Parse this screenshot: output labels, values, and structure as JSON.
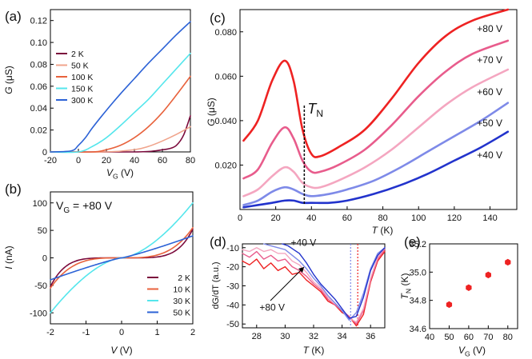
{
  "chart_data": [
    {
      "id": "a",
      "panel_label": "(a)",
      "type": "line",
      "xlabel": "V",
      "xlabel_sub": "G",
      "xlabel_unit": "(V)",
      "ylabel": "G",
      "ylabel_unit": "(μS)",
      "xlim": [
        -20,
        80
      ],
      "ylim": [
        0,
        0.13
      ],
      "xticks": [
        -20,
        0,
        20,
        40,
        60,
        80
      ],
      "xticklabels": [
        "-20",
        "0",
        "20",
        "40",
        "60",
        "80"
      ],
      "yticks": [
        0,
        0.02,
        0.04,
        0.06,
        0.08,
        0.1,
        0.12
      ],
      "yticklabels": [
        "0",
        "0.02",
        "0.04",
        "0.06",
        "0.08",
        "0.10",
        "0.12"
      ],
      "legend_position": "left",
      "series": [
        {
          "name": "2 K",
          "color": "#7b0a3c",
          "x": [
            -20,
            40,
            55,
            60,
            65,
            70,
            75,
            80
          ],
          "y": [
            0,
            0,
            0.001,
            0.002,
            0.003,
            0.006,
            0.015,
            0.033
          ]
        },
        {
          "name": "50 K",
          "color": "#f0a48c",
          "x": [
            -20,
            20,
            40,
            50,
            60,
            70,
            80
          ],
          "y": [
            0,
            0,
            0.002,
            0.005,
            0.01,
            0.016,
            0.023
          ]
        },
        {
          "name": "100 K",
          "color": "#e8623c",
          "x": [
            -20,
            10,
            20,
            30,
            40,
            50,
            60,
            70,
            80
          ],
          "y": [
            0,
            0,
            0.002,
            0.006,
            0.013,
            0.023,
            0.036,
            0.052,
            0.069
          ]
        },
        {
          "name": "150 K",
          "color": "#55e6ec",
          "x": [
            -20,
            0,
            10,
            20,
            30,
            40,
            50,
            60,
            70,
            80
          ],
          "y": [
            0,
            0,
            0.005,
            0.013,
            0.024,
            0.036,
            0.048,
            0.062,
            0.076,
            0.09
          ]
        },
        {
          "name": "300 K",
          "color": "#2c62d6",
          "x": [
            -20,
            -5,
            0,
            5,
            10,
            20,
            30,
            40,
            50,
            60,
            70,
            80
          ],
          "y": [
            0,
            0.001,
            0.006,
            0.013,
            0.022,
            0.038,
            0.053,
            0.067,
            0.081,
            0.094,
            0.107,
            0.119
          ]
        }
      ]
    },
    {
      "id": "b",
      "panel_label": "(b)",
      "type": "line",
      "annotation": "V",
      "annotation_sub": "G",
      "annotation_value": " = +80 V",
      "xlabel": "V",
      "xlabel_unit": "(V)",
      "ylabel": "I",
      "ylabel_unit": "(nA)",
      "xlim": [
        -2,
        2
      ],
      "ylim": [
        -120,
        120
      ],
      "xticks": [
        -2,
        -1,
        0,
        1,
        2
      ],
      "xticklabels": [
        "-2",
        "-1",
        "0",
        "1",
        "2"
      ],
      "yticks": [
        -100,
        -50,
        0,
        50,
        100
      ],
      "yticklabels": [
        "-100",
        "-50",
        "0",
        "50",
        "100"
      ],
      "legend_position": "bottom-right",
      "series": [
        {
          "name": "2 K",
          "color": "#7b0a3c",
          "model": "cubic",
          "scale": 50
        },
        {
          "name": "10 K",
          "color": "#e8623c",
          "model": "cubic",
          "scale": 55
        },
        {
          "name": "30 K",
          "color": "#55e6ec",
          "model": "cubic",
          "scale": 100
        },
        {
          "name": "50 K",
          "color": "#2c62d6",
          "model": "linear",
          "scale": 40
        }
      ]
    },
    {
      "id": "c",
      "panel_label": "(c)",
      "type": "line",
      "xlabel": "T",
      "xlabel_unit": "(K)",
      "ylabel": "G",
      "ylabel_unit": "(μS)",
      "xlim": [
        0,
        155
      ],
      "ylim": [
        0,
        0.09
      ],
      "xticks": [
        0,
        20,
        40,
        60,
        80,
        100,
        120,
        140
      ],
      "xticklabels": [
        "0",
        "20",
        "40",
        "60",
        "80",
        "100",
        "120",
        "140"
      ],
      "yticks": [
        0.02,
        0.04,
        0.06,
        0.08
      ],
      "yticklabels": [
        "0.020",
        "0.040",
        "0.060",
        "0.080"
      ],
      "annotation": "T",
      "annotation_sub": "N",
      "transition_T": 36,
      "series": [
        {
          "name": "+80 V",
          "color": "#ee2222",
          "x": [
            2,
            10,
            18,
            25,
            30,
            35,
            40,
            45,
            55,
            70,
            85,
            100,
            115,
            130,
            150
          ],
          "y": [
            0.031,
            0.04,
            0.058,
            0.067,
            0.058,
            0.036,
            0.025,
            0.024,
            0.028,
            0.036,
            0.05,
            0.066,
            0.078,
            0.085,
            0.09
          ]
        },
        {
          "name": "+70 V",
          "color": "#e85c8c",
          "x": [
            2,
            10,
            18,
            25,
            30,
            35,
            40,
            45,
            55,
            70,
            85,
            100,
            115,
            130,
            150
          ],
          "y": [
            0.014,
            0.018,
            0.03,
            0.037,
            0.032,
            0.022,
            0.017,
            0.017,
            0.02,
            0.027,
            0.038,
            0.051,
            0.062,
            0.07,
            0.076
          ]
        },
        {
          "name": "+60 V",
          "color": "#f4a6c0",
          "x": [
            2,
            10,
            18,
            25,
            30,
            35,
            40,
            45,
            55,
            70,
            85,
            100,
            115,
            130,
            150
          ],
          "y": [
            0.006,
            0.009,
            0.015,
            0.019,
            0.017,
            0.012,
            0.01,
            0.01,
            0.013,
            0.019,
            0.027,
            0.037,
            0.047,
            0.055,
            0.063
          ]
        },
        {
          "name": "+50 V",
          "color": "#7e8ae8",
          "x": [
            2,
            10,
            18,
            25,
            30,
            35,
            40,
            50,
            60,
            75,
            90,
            105,
            120,
            135,
            150
          ],
          "y": [
            0.002,
            0.004,
            0.008,
            0.01,
            0.009,
            0.007,
            0.006,
            0.007,
            0.009,
            0.013,
            0.019,
            0.026,
            0.033,
            0.04,
            0.048
          ]
        },
        {
          "name": "+40 V",
          "color": "#2233cc",
          "x": [
            2,
            10,
            18,
            25,
            30,
            35,
            40,
            50,
            60,
            75,
            90,
            105,
            120,
            135,
            150
          ],
          "y": [
            0.001,
            0.002,
            0.003,
            0.004,
            0.004,
            0.003,
            0.003,
            0.003,
            0.004,
            0.007,
            0.011,
            0.016,
            0.022,
            0.028,
            0.035
          ]
        }
      ]
    },
    {
      "id": "d",
      "panel_label": "(d)",
      "type": "line",
      "xlabel": "T",
      "xlabel_unit": "(K)",
      "ylabel": "dG/dT",
      "ylabel_unit": "(a.u.)",
      "xlim": [
        27,
        37
      ],
      "ylim": [
        -52,
        -8
      ],
      "xticks": [
        28,
        30,
        32,
        34,
        36
      ],
      "xticklabels": [
        "28",
        "30",
        "32",
        "34",
        "36"
      ],
      "yticks": [
        -10,
        -20,
        -30,
        -40,
        -50
      ],
      "yticklabels": [
        "-10",
        "-20",
        "-30",
        "-40",
        "-50"
      ],
      "annotations": [
        {
          "text": "+40 V",
          "color": "#2233cc",
          "x": 30.4,
          "y": -9
        },
        {
          "text": "+80 V",
          "color": "#ee2222",
          "x": 28.2,
          "y": -43
        }
      ],
      "dotted_lines": [
        {
          "T": 34.6,
          "color": "#7e8ae8"
        },
        {
          "T": 35.1,
          "color": "#ee2222"
        }
      ],
      "series": [
        {
          "name": "+80 V",
          "color": "#ee2222",
          "x": [
            27,
            27.5,
            28,
            28.5,
            29,
            29.5,
            30,
            30.5,
            31,
            31.5,
            32,
            32.5,
            33,
            33.5,
            34,
            34.5,
            35,
            35.5,
            36,
            36.5,
            37
          ],
          "y": [
            -17,
            -19,
            -16,
            -21,
            -18,
            -22,
            -20,
            -24,
            -23,
            -27,
            -30,
            -33,
            -38,
            -40,
            -44,
            -46,
            -51,
            -45,
            -28,
            -17,
            -12
          ]
        },
        {
          "name": "+70 V",
          "color": "#e85c8c",
          "x": [
            27,
            27.5,
            28,
            28.5,
            29,
            29.5,
            30,
            30.5,
            31,
            31.5,
            32,
            32.5,
            33,
            33.5,
            34,
            34.5,
            35,
            35.5,
            36,
            36.5,
            37
          ],
          "y": [
            -13,
            -15,
            -12,
            -16,
            -14,
            -17,
            -16,
            -20,
            -22,
            -25,
            -29,
            -32,
            -37,
            -40,
            -43,
            -46,
            -50,
            -43,
            -27,
            -16,
            -11
          ]
        },
        {
          "name": "+60 V",
          "color": "#f4a6c0",
          "x": [
            27,
            27.5,
            28,
            28.5,
            29,
            29.5,
            30,
            30.5,
            31,
            31.5,
            32,
            32.5,
            33,
            33.5,
            34,
            34.5,
            35,
            35.5,
            36,
            36.5,
            37
          ],
          "y": [
            -11,
            -12,
            -10,
            -12,
            -11,
            -13,
            -13,
            -17,
            -19,
            -23,
            -28,
            -31,
            -36,
            -39,
            -43,
            -47,
            -49,
            -42,
            -26,
            -15,
            -10
          ]
        },
        {
          "name": "+50 V",
          "color": "#7e8ae8",
          "x": [
            28.5,
            29,
            29.5,
            30,
            30.5,
            31,
            31.5,
            32,
            32.5,
            33,
            33.5,
            34,
            34.5,
            35,
            35.5,
            36,
            36.5,
            37
          ],
          "y": [
            -8,
            -9,
            -10,
            -11,
            -14,
            -17,
            -21,
            -26,
            -30,
            -35,
            -39,
            -43,
            -48,
            -44,
            -34,
            -21,
            -13,
            -10
          ]
        },
        {
          "name": "+40 V",
          "color": "#2233cc",
          "x": [
            29.8,
            30.2,
            30.6,
            31,
            31.5,
            32,
            32.5,
            33,
            33.5,
            34,
            34.5,
            35,
            35.5,
            36,
            36.5,
            37
          ],
          "y": [
            -8,
            -9,
            -11,
            -13,
            -18,
            -24,
            -29,
            -33,
            -37,
            -42,
            -47,
            -46,
            -36,
            -22,
            -14,
            -10
          ]
        }
      ]
    },
    {
      "id": "e",
      "panel_label": "(e)",
      "type": "scatter",
      "xlabel": "V",
      "xlabel_sub": "G",
      "xlabel_unit": "(V)",
      "ylabel": "T",
      "ylabel_sub": "N",
      "ylabel_unit": "(K)",
      "xlim": [
        40,
        85
      ],
      "ylim": [
        34.6,
        35.2
      ],
      "xticks": [
        40,
        50,
        60,
        70,
        80
      ],
      "xticklabels": [
        "40",
        "50",
        "60",
        "70",
        "80"
      ],
      "yticks": [
        34.6,
        34.8,
        35.0,
        35.2
      ],
      "yticklabels": [
        "34.6",
        "34.8",
        "35.0",
        "35.2"
      ],
      "color": "#ee2222",
      "points": [
        {
          "x": 50,
          "y": 34.77
        },
        {
          "x": 60,
          "y": 34.89
        },
        {
          "x": 70,
          "y": 34.98
        },
        {
          "x": 80,
          "y": 35.07
        }
      ]
    }
  ]
}
